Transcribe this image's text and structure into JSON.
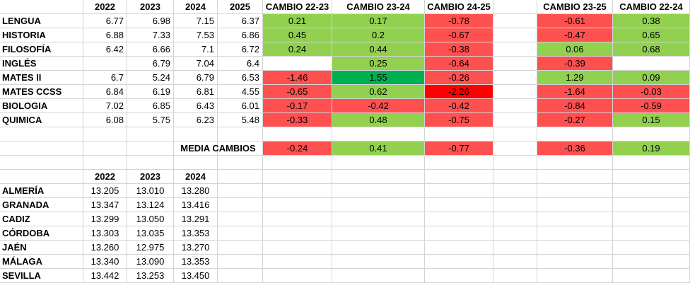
{
  "top_table": {
    "year_headers": [
      "2022",
      "2023",
      "2024",
      "2025"
    ],
    "change_headers": [
      "CAMBIO 22-23",
      "CAMBIO 23-24",
      "CAMBIO 24-25"
    ],
    "extra_headers": [
      "CAMBIO 23-25",
      "CAMBIO 22-24"
    ],
    "rows": [
      {
        "subject": "LENGUA",
        "y2022": "6.77",
        "y2023": "6.98",
        "y2024": "7.15",
        "y2025": "6.37",
        "c2223": "0.21",
        "c2324": "0.17",
        "c2425": "-0.78",
        "c2325": "-0.61",
        "c2224": "0.38"
      },
      {
        "subject": "HISTORIA",
        "y2022": "6.88",
        "y2023": "7.33",
        "y2024": "7.53",
        "y2025": "6.86",
        "c2223": "0.45",
        "c2324": "0.2",
        "c2425": "-0.67",
        "c2325": "-0.47",
        "c2224": "0.65"
      },
      {
        "subject": "FILOSOFÍA",
        "y2022": "6.42",
        "y2023": "6.66",
        "y2024": "7.1",
        "y2025": "6.72",
        "c2223": "0.24",
        "c2324": "0.44",
        "c2425": "-0.38",
        "c2325": "0.06",
        "c2224": "0.68"
      },
      {
        "subject": "INGLÉS",
        "y2022": "",
        "y2023": "6.79",
        "y2024": "7.04",
        "y2025": "6.4",
        "c2223": "",
        "c2324": "0.25",
        "c2425": "-0.64",
        "c2325": "-0.39",
        "c2224": ""
      },
      {
        "subject": "MATES II",
        "y2022": "6.7",
        "y2023": "5.24",
        "y2024": "6.79",
        "y2025": "6.53",
        "c2223": "-1.46",
        "c2324": "1.55",
        "c2425": "-0.26",
        "c2325": "1.29",
        "c2224": "0.09"
      },
      {
        "subject": "MATES CCSS",
        "y2022": "6.84",
        "y2023": "6.19",
        "y2024": "6.81",
        "y2025": "4.55",
        "c2223": "-0.65",
        "c2324": "0.62",
        "c2425": "-2.26",
        "c2325": "-1.64",
        "c2224": "-0.03"
      },
      {
        "subject": "BIOLOGIA",
        "y2022": "7.02",
        "y2023": "6.85",
        "y2024": "6.43",
        "y2025": "6.01",
        "c2223": "-0.17",
        "c2324": "-0.42",
        "c2425": "-0.42",
        "c2325": "-0.84",
        "c2224": "-0.59"
      },
      {
        "subject": "QUIMICA",
        "y2022": "6.08",
        "y2023": "5.75",
        "y2024": "6.23",
        "y2025": "5.48",
        "c2223": "-0.33",
        "c2324": "0.48",
        "c2425": "-0.75",
        "c2325": "-0.27",
        "c2224": "0.15"
      }
    ],
    "media_label": "MEDIA CAMBIOS",
    "media": {
      "c2223": "-0.24",
      "c2324": "0.41",
      "c2425": "-0.77",
      "c2325": "-0.36",
      "c2224": "0.19"
    }
  },
  "colors": {
    "positive": "#92d050",
    "negative": "#ff5050",
    "strong_positive": "#00b050",
    "strong_negative": "#ff0000",
    "gridline": "#d4d4d4"
  },
  "bottom_table": {
    "year_headers": [
      "2022",
      "2023",
      "2024"
    ],
    "rows": [
      {
        "province": "ALMERÍA",
        "y2022": "13.205",
        "y2023": "13.010",
        "y2024": "13.280"
      },
      {
        "province": "GRANADA",
        "y2022": "13.347",
        "y2023": "13.124",
        "y2024": "13.416"
      },
      {
        "province": "CADIZ",
        "y2022": "13.299",
        "y2023": "13.050",
        "y2024": "13.291"
      },
      {
        "province": "CÓRDOBA",
        "y2022": "13.303",
        "y2023": "13.035",
        "y2024": "13.353"
      },
      {
        "province": "JAÉN",
        "y2022": "13.260",
        "y2023": "12.975",
        "y2024": "13.270"
      },
      {
        "province": "MÁLAGA",
        "y2022": "13.340",
        "y2023": "13.090",
        "y2024": "13.353"
      },
      {
        "province": "SEVILLA",
        "y2022": "13.442",
        "y2023": "13.253",
        "y2024": "13.450"
      }
    ]
  }
}
